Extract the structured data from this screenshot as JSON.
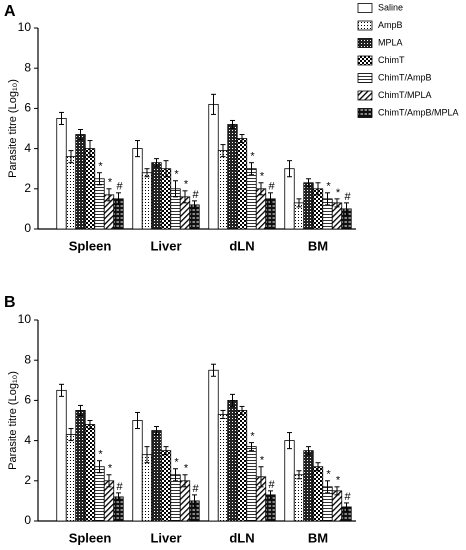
{
  "chart_data": [
    {
      "type": "bar",
      "panel": "A",
      "ylabel": "Parasite titre (Log₁₀)",
      "categories": [
        "Spleen",
        "Liver",
        "dLN",
        "BM"
      ],
      "ylim": [
        0,
        10
      ],
      "yticks": [
        0,
        2,
        4,
        6,
        8,
        10
      ],
      "series": [
        {
          "name": "Saline",
          "color": "#000000",
          "pattern": "none",
          "values": [
            5.5,
            4.0,
            6.2,
            3.0
          ],
          "errors": [
            0.3,
            0.4,
            0.5,
            0.4
          ]
        },
        {
          "name": "AmpB",
          "color": "#000000",
          "pattern": "dots",
          "values": [
            3.6,
            2.8,
            3.9,
            1.3
          ],
          "errors": [
            0.3,
            0.2,
            0.3,
            0.2
          ]
        },
        {
          "name": "MPLA",
          "color": "#000000",
          "pattern": "dense",
          "values": [
            4.7,
            3.3,
            5.2,
            2.3
          ],
          "errors": [
            0.25,
            0.2,
            0.2,
            0.2
          ]
        },
        {
          "name": "ChimT",
          "color": "#000000",
          "pattern": "checker",
          "values": [
            4.0,
            3.0,
            4.5,
            2.0
          ],
          "errors": [
            0.4,
            0.4,
            0.2,
            0.3
          ]
        },
        {
          "name": "ChimT/AmpB",
          "color": "#000000",
          "pattern": "hlines",
          "values": [
            2.5,
            2.0,
            3.0,
            1.5
          ],
          "errors": [
            0.3,
            0.4,
            0.3,
            0.3
          ],
          "labels": [
            "*",
            "*",
            "*",
            "*"
          ]
        },
        {
          "name": "ChimT/MPLA",
          "color": "#000000",
          "pattern": "diag",
          "values": [
            1.7,
            1.6,
            2.0,
            1.3
          ],
          "errors": [
            0.3,
            0.3,
            0.3,
            0.2
          ],
          "labels": [
            "*",
            "*",
            "*",
            "*"
          ]
        },
        {
          "name": "ChimT/AmpB/MPLA",
          "color": "#000000",
          "pattern": "bricks",
          "values": [
            1.5,
            1.2,
            1.5,
            1.0
          ],
          "errors": [
            0.3,
            0.2,
            0.3,
            0.3
          ],
          "labels": [
            "#",
            "#",
            "#",
            "#"
          ]
        }
      ]
    },
    {
      "type": "bar",
      "panel": "B",
      "ylabel": "Parasite titre (Log₁₀)",
      "categories": [
        "Spleen",
        "Liver",
        "dLN",
        "BM"
      ],
      "ylim": [
        0,
        10
      ],
      "yticks": [
        0,
        2,
        4,
        6,
        8,
        10
      ],
      "series": [
        {
          "color": "#000000",
          "pattern": "none",
          "values": [
            6.5,
            5.0,
            7.5,
            4.0
          ],
          "errors": [
            0.3,
            0.4,
            0.3,
            0.4
          ]
        },
        {
          "color": "#000000",
          "pattern": "dots",
          "values": [
            4.3,
            3.3,
            5.3,
            2.3
          ],
          "errors": [
            0.3,
            0.4,
            0.2,
            0.2
          ]
        },
        {
          "color": "#000000",
          "pattern": "dense",
          "values": [
            5.5,
            4.5,
            6.0,
            3.5
          ],
          "errors": [
            0.25,
            0.2,
            0.3,
            0.2
          ]
        },
        {
          "color": "#000000",
          "pattern": "checker",
          "values": [
            4.8,
            3.5,
            5.5,
            2.7
          ],
          "errors": [
            0.2,
            0.2,
            0.2,
            0.2
          ]
        },
        {
          "color": "#000000",
          "pattern": "hlines",
          "values": [
            2.7,
            2.3,
            3.7,
            1.7
          ],
          "errors": [
            0.3,
            0.3,
            0.2,
            0.3
          ],
          "labels": [
            "*",
            "*",
            "*",
            "*"
          ]
        },
        {
          "color": "#000000",
          "pattern": "diag",
          "values": [
            2.0,
            2.0,
            2.2,
            1.5
          ],
          "errors": [
            0.3,
            0.3,
            0.5,
            0.2
          ],
          "labels": [
            "*",
            "*",
            "*",
            "*"
          ]
        },
        {
          "color": "#000000",
          "pattern": "bricks",
          "values": [
            1.2,
            1.0,
            1.3,
            0.7
          ],
          "errors": [
            0.2,
            0.3,
            0.2,
            0.2
          ],
          "labels": [
            "#",
            "#",
            "#",
            "#"
          ]
        }
      ]
    }
  ]
}
